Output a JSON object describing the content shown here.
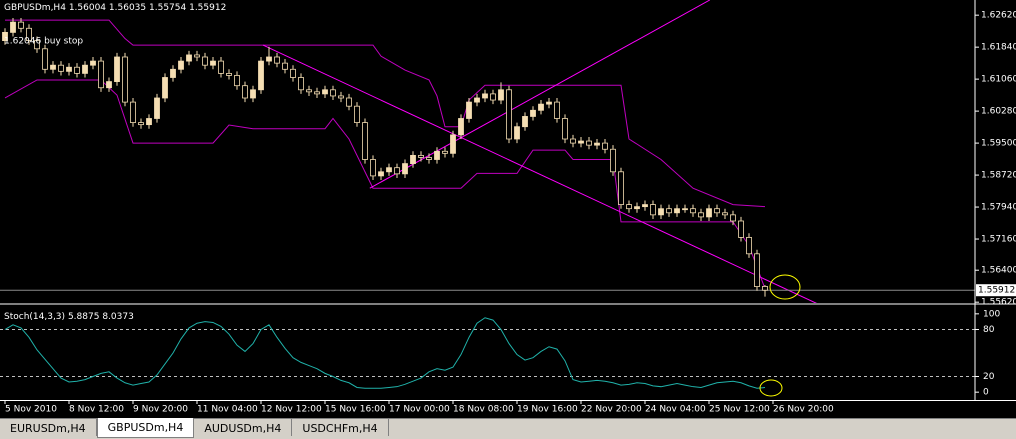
{
  "chart_data": [
    {
      "type": "candlestick",
      "title": "GBPUSDm,H4",
      "annotation": "1.62046 buy stop",
      "open": [
        1.62,
        1.622,
        1.6245,
        1.623,
        1.62,
        1.618,
        1.613,
        1.614,
        1.6125,
        1.6135,
        1.612,
        1.614,
        1.615,
        1.6085,
        1.61,
        1.616,
        1.605,
        1.6,
        1.5995,
        1.601,
        1.606,
        1.611,
        1.613,
        1.615,
        1.6165,
        1.616,
        1.614,
        1.615,
        1.612,
        1.6115,
        1.609,
        1.606,
        1.608,
        1.615,
        1.616,
        1.6145,
        1.613,
        1.611,
        1.608,
        1.6075,
        1.607,
        1.608,
        1.6065,
        1.606,
        1.604,
        1.6,
        1.591,
        1.587,
        1.588,
        1.589,
        1.5875,
        1.59,
        1.592,
        1.5915,
        1.591,
        1.593,
        1.5925,
        1.597,
        1.601,
        1.605,
        1.606,
        1.607,
        1.6055,
        1.608,
        1.596,
        1.599,
        1.6015,
        1.603,
        1.6045,
        1.605,
        1.601,
        1.596,
        1.595,
        1.5955,
        1.5945,
        1.595,
        1.5935,
        1.588,
        1.58,
        1.579,
        1.5795,
        1.58,
        1.5775,
        1.579,
        1.578,
        1.579,
        1.579,
        1.578,
        1.577,
        1.579,
        1.578,
        1.5775,
        1.576,
        1.572,
        1.568,
        1.56004
      ],
      "high": [
        1.623,
        1.6255,
        1.6255,
        1.624,
        1.621,
        1.619,
        1.615,
        1.615,
        1.6145,
        1.6145,
        1.615,
        1.616,
        1.616,
        1.611,
        1.617,
        1.617,
        1.606,
        1.601,
        1.602,
        1.607,
        1.612,
        1.614,
        1.616,
        1.6175,
        1.6175,
        1.617,
        1.616,
        1.616,
        1.613,
        1.6125,
        1.61,
        1.609,
        1.616,
        1.6185,
        1.617,
        1.6155,
        1.614,
        1.612,
        1.609,
        1.6085,
        1.609,
        1.609,
        1.6075,
        1.607,
        1.605,
        1.601,
        1.592,
        1.589,
        1.59,
        1.59,
        1.591,
        1.593,
        1.593,
        1.5925,
        1.594,
        1.594,
        1.598,
        1.602,
        1.606,
        1.607,
        1.608,
        1.608,
        1.6098,
        1.609,
        1.6,
        1.6025,
        1.604,
        1.6055,
        1.606,
        1.606,
        1.602,
        1.597,
        1.5965,
        1.5965,
        1.596,
        1.596,
        1.5945,
        1.589,
        1.581,
        1.5805,
        1.581,
        1.581,
        1.58,
        1.58,
        1.58,
        1.58,
        1.58,
        1.579,
        1.58,
        1.58,
        1.579,
        1.5785,
        1.577,
        1.573,
        1.569,
        1.56035
      ],
      "low": [
        1.619,
        1.621,
        1.622,
        1.619,
        1.617,
        1.612,
        1.612,
        1.6115,
        1.6115,
        1.611,
        1.611,
        1.613,
        1.6075,
        1.6075,
        1.609,
        1.604,
        1.599,
        1.5985,
        1.5985,
        1.6,
        1.605,
        1.61,
        1.612,
        1.614,
        1.615,
        1.613,
        1.613,
        1.611,
        1.6105,
        1.608,
        1.605,
        1.605,
        1.607,
        1.614,
        1.6135,
        1.612,
        1.61,
        1.607,
        1.6065,
        1.606,
        1.606,
        1.6055,
        1.605,
        1.603,
        1.599,
        1.59,
        1.586,
        1.586,
        1.587,
        1.5865,
        1.5865,
        1.589,
        1.5905,
        1.59,
        1.59,
        1.5915,
        1.5915,
        1.596,
        1.6,
        1.604,
        1.605,
        1.6045,
        1.6045,
        1.595,
        1.595,
        1.598,
        1.6005,
        1.602,
        1.6035,
        1.6,
        1.595,
        1.594,
        1.594,
        1.5935,
        1.5935,
        1.5925,
        1.587,
        1.579,
        1.578,
        1.578,
        1.5785,
        1.5765,
        1.5765,
        1.577,
        1.577,
        1.578,
        1.577,
        1.576,
        1.576,
        1.577,
        1.5765,
        1.575,
        1.571,
        1.567,
        1.559,
        1.55754
      ],
      "close": [
        1.622,
        1.6245,
        1.623,
        1.62,
        1.618,
        1.613,
        1.614,
        1.6125,
        1.6135,
        1.612,
        1.614,
        1.615,
        1.6085,
        1.61,
        1.616,
        1.605,
        1.6,
        1.5995,
        1.601,
        1.606,
        1.611,
        1.613,
        1.615,
        1.6165,
        1.616,
        1.614,
        1.615,
        1.612,
        1.6115,
        1.609,
        1.606,
        1.608,
        1.615,
        1.616,
        1.6145,
        1.613,
        1.611,
        1.608,
        1.6075,
        1.607,
        1.608,
        1.6065,
        1.606,
        1.604,
        1.6,
        1.591,
        1.587,
        1.588,
        1.589,
        1.5875,
        1.59,
        1.592,
        1.5915,
        1.591,
        1.593,
        1.5925,
        1.597,
        1.601,
        1.605,
        1.606,
        1.607,
        1.6055,
        1.608,
        1.596,
        1.599,
        1.6015,
        1.603,
        1.6045,
        1.605,
        1.601,
        1.596,
        1.595,
        1.5955,
        1.5945,
        1.595,
        1.5935,
        1.588,
        1.58,
        1.579,
        1.5795,
        1.58,
        1.5775,
        1.579,
        1.578,
        1.579,
        1.579,
        1.578,
        1.577,
        1.579,
        1.578,
        1.5775,
        1.576,
        1.572,
        1.568,
        1.56,
        1.55912
      ],
      "xlim": [
        -0.625,
        121.25
      ],
      "ylim": [
        1.556,
        1.6299
      ],
      "yticks": [
        {
          "value": 1.6262,
          "label": "1.62620"
        },
        {
          "value": 1.6184,
          "label": "1.61840"
        },
        {
          "value": 1.6106,
          "label": "1.61060"
        },
        {
          "value": 1.6028,
          "label": "1.60280"
        },
        {
          "value": 1.595,
          "label": "1.59500"
        },
        {
          "value": 1.5872,
          "label": "1.58720"
        },
        {
          "value": 1.5794,
          "label": "1.57940"
        },
        {
          "value": 1.5716,
          "label": "1.57160"
        },
        {
          "value": 1.564,
          "label": "1.56400"
        },
        {
          "value": 1.5562,
          "label": "1.55620"
        }
      ],
      "xticks": [
        {
          "value": 0,
          "label": "5 Nov 2010"
        },
        {
          "value": 8,
          "label": "8 Nov 12:00"
        },
        {
          "value": 16,
          "label": "9 Nov 20:00"
        },
        {
          "value": 24,
          "label": "11 Nov 04:00"
        },
        {
          "value": 32,
          "label": "12 Nov 12:00"
        },
        {
          "value": 40,
          "label": "15 Nov 16:00"
        },
        {
          "value": 48,
          "label": "17 Nov 00:00"
        },
        {
          "value": 56,
          "label": "18 Nov 08:00"
        },
        {
          "value": 64,
          "label": "19 Nov 16:00"
        },
        {
          "value": 72,
          "label": "22 Nov 20:00"
        },
        {
          "value": 80,
          "label": "24 Nov 04:00"
        },
        {
          "value": 88,
          "label": "25 Nov 12:00"
        },
        {
          "value": 96,
          "label": "26 Nov 20:00"
        }
      ],
      "up_color": "#f5deb3",
      "down_color": "#000000",
      "wick_color": "#f5deb3",
      "bid_line_color": "#8a8a8a",
      "channel": [
        {
          "color": "#c000c0",
          "x": [
            0,
            13,
            15,
            16,
            46,
            47,
            50,
            53,
            54,
            55,
            57,
            58,
            60,
            77,
            78,
            82,
            86,
            91,
            95
          ],
          "values": [
            1.625,
            1.625,
            1.6205,
            1.6189,
            1.6189,
            1.6162,
            1.6128,
            1.6104,
            1.6065,
            1.599,
            1.599,
            1.6055,
            1.6091,
            1.6091,
            1.596,
            1.591,
            1.584,
            1.58,
            1.5795
          ]
        },
        {
          "color": "#c000c0",
          "x": [
            0,
            4,
            12,
            14,
            16,
            26,
            28,
            31,
            40,
            41,
            43,
            46,
            57,
            59,
            64,
            66,
            70,
            71,
            76,
            77,
            91,
            93,
            95
          ],
          "values": [
            1.606,
            1.6104,
            1.6104,
            1.6067,
            1.595,
            1.595,
            1.5994,
            1.5985,
            1.5985,
            1.601,
            1.596,
            1.584,
            1.584,
            1.5876,
            1.5876,
            1.5933,
            1.5933,
            1.591,
            1.591,
            1.5758,
            1.5758,
            1.57,
            1.5595
          ]
        }
      ],
      "trendlines": [
        {
          "color": "#ff00ff",
          "x": [
            32.25,
            101.9
          ],
          "values": [
            1.6189,
            1.5555
          ]
        },
        {
          "color": "#ff00ff",
          "x": [
            45.6,
            88.1
          ],
          "values": [
            1.584,
            1.6299
          ]
        }
      ]
    },
    {
      "type": "line",
      "title": "Stoch(14,3,3)",
      "color": "#20b2aa",
      "signal_value": 8.0373,
      "values": [
        80,
        86,
        82,
        70,
        54,
        42,
        30,
        18,
        13,
        14,
        16,
        20,
        24,
        26,
        18,
        12,
        9,
        11,
        13,
        22,
        36,
        50,
        68,
        82,
        88,
        90,
        89,
        84,
        74,
        60,
        52,
        62,
        80,
        86,
        70,
        56,
        44,
        38,
        34,
        30,
        24,
        20,
        15,
        12,
        6,
        5,
        5,
        5,
        6,
        7,
        10,
        14,
        18,
        26,
        30,
        28,
        32,
        48,
        70,
        88,
        95,
        92,
        80,
        62,
        48,
        41,
        44,
        52,
        58,
        55,
        40,
        16,
        13,
        14,
        15,
        14,
        12,
        9,
        10,
        12,
        11,
        8,
        7,
        9,
        11,
        9,
        7,
        6,
        9,
        12,
        13,
        14,
        12,
        8,
        5,
        5.8875
      ],
      "ylim": [
        -10,
        110
      ],
      "yticks": [
        100,
        80,
        20,
        0
      ],
      "levels": [
        80,
        20
      ]
    }
  ],
  "tabs": [
    "EURUSDm,H4",
    "GBPUSDm,H4",
    "AUDUSDm,H4",
    "USDCHFm,H4"
  ],
  "active_tab": 1
}
